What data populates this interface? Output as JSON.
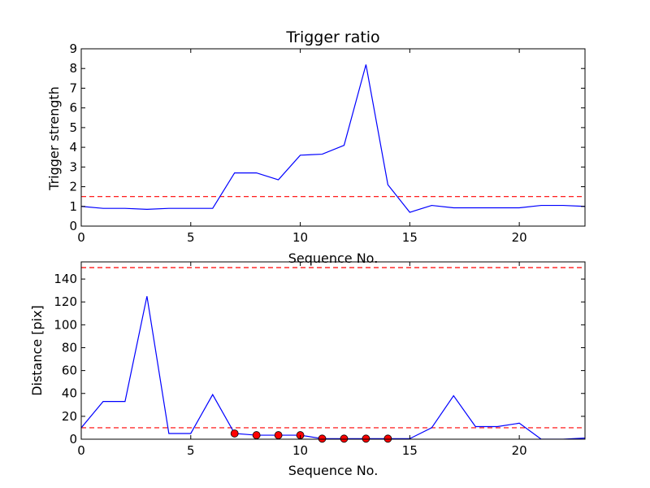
{
  "chart_data": [
    {
      "type": "line",
      "title": "Trigger ratio",
      "xlabel": "Sequence No.",
      "ylabel": "Trigger strength",
      "xlim": [
        0,
        23
      ],
      "ylim": [
        0,
        9
      ],
      "xticks": [
        0,
        5,
        10,
        15,
        20
      ],
      "yticks": [
        0,
        1,
        2,
        3,
        4,
        5,
        6,
        7,
        8,
        9
      ],
      "grid": false,
      "series": [
        {
          "color": "#0000ff",
          "x": [
            0,
            1,
            2,
            3,
            4,
            5,
            6,
            7,
            8,
            9,
            10,
            11,
            12,
            13,
            14,
            15,
            16,
            17,
            18,
            19,
            20,
            21,
            22,
            23
          ],
          "y": [
            1.0,
            0.9,
            0.9,
            0.85,
            0.9,
            0.9,
            0.9,
            2.7,
            2.7,
            2.35,
            3.6,
            3.65,
            4.1,
            8.2,
            2.1,
            0.7,
            1.05,
            0.93,
            0.93,
            0.93,
            0.93,
            1.05,
            1.05,
            1.0
          ]
        }
      ],
      "threshold_lines": [
        {
          "y": 1.5,
          "color": "#ff0000",
          "style": "dashed"
        }
      ]
    },
    {
      "type": "line",
      "title": "",
      "xlabel": "Sequence No.",
      "ylabel": "Distance [pix]",
      "xlim": [
        0,
        23
      ],
      "ylim": [
        0,
        155
      ],
      "xticks": [
        0,
        5,
        10,
        15,
        20
      ],
      "yticks": [
        0,
        20,
        40,
        60,
        80,
        100,
        120,
        140
      ],
      "grid": false,
      "series": [
        {
          "color": "#0000ff",
          "x": [
            0,
            1,
            2,
            3,
            4,
            5,
            6,
            7,
            8,
            9,
            10,
            11,
            12,
            13,
            14,
            15,
            16,
            17,
            18,
            19,
            20,
            21,
            22,
            23
          ],
          "y": [
            10,
            33,
            33,
            125,
            5,
            5,
            39,
            5,
            3.5,
            3.5,
            3.5,
            0.5,
            0.5,
            0.5,
            0.5,
            0.5,
            10,
            38,
            11,
            11,
            14,
            0,
            0,
            1
          ]
        }
      ],
      "markers": {
        "color": "#ff0000",
        "x": [
          7,
          8,
          9,
          10,
          11,
          12,
          13,
          14
        ],
        "y": [
          5,
          3.5,
          3.5,
          3.5,
          0.5,
          0.5,
          0.5,
          0.5
        ]
      },
      "threshold_lines": [
        {
          "y": 150,
          "color": "#ff0000",
          "style": "dashed"
        },
        {
          "y": 10,
          "color": "#ff0000",
          "style": "dashed"
        }
      ]
    }
  ]
}
